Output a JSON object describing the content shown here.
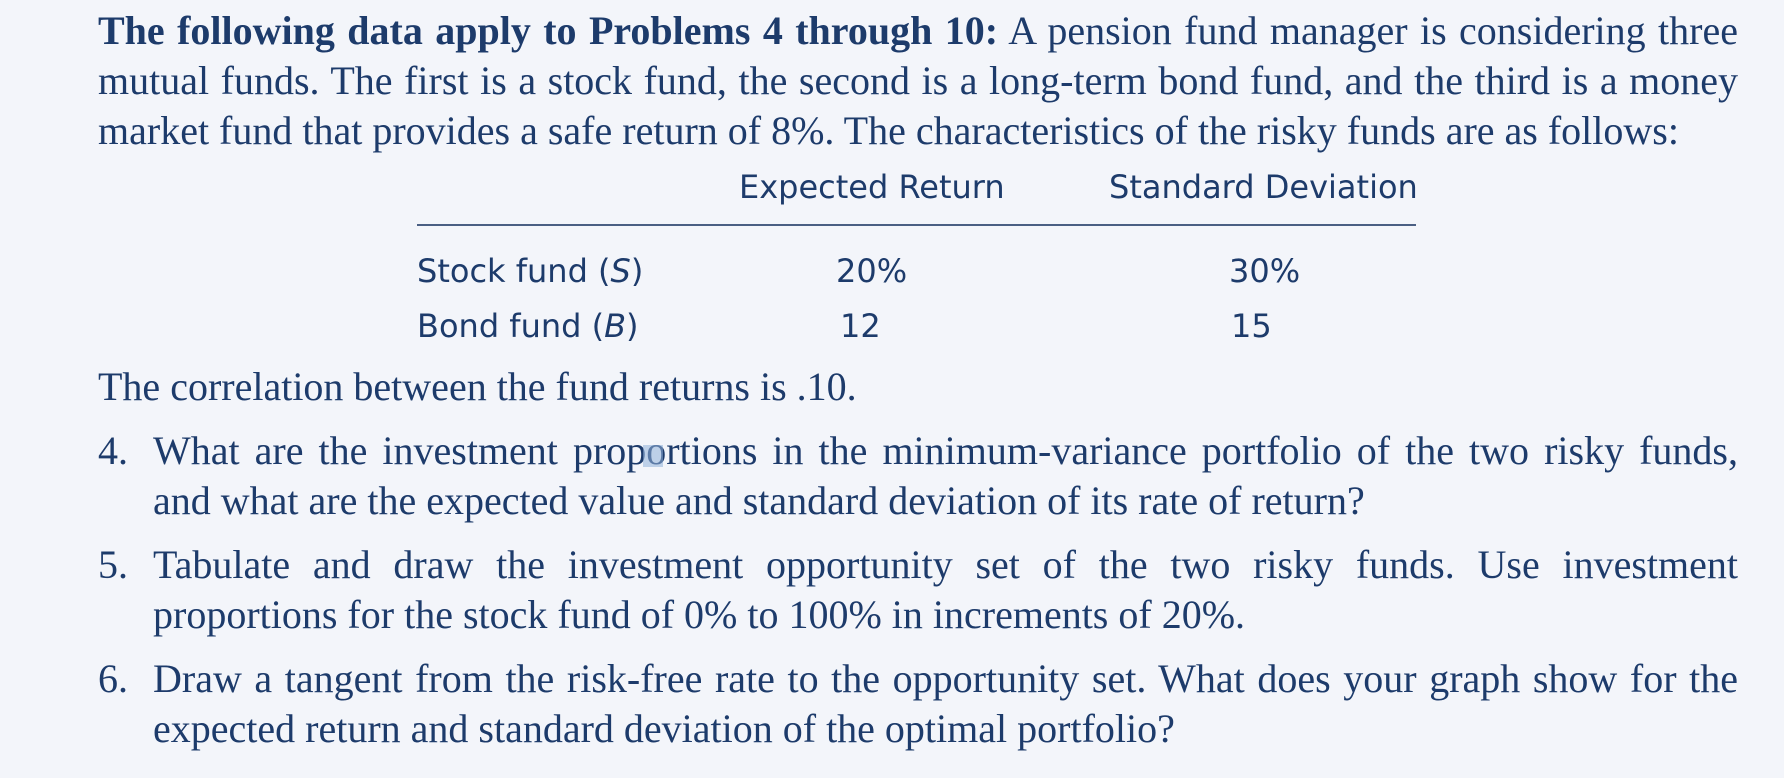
{
  "intro": {
    "lead": "The following data apply to Problems 4 through 10:",
    "text": " A pension fund manager is considering three mutual funds. The first is a stock fund, the second is a long-term bond fund, and the third is a money market fund that provides a safe return of 8%. The characteristics of the risky funds are as follows:"
  },
  "table": {
    "headers": [
      "Expected Return",
      "Standard Deviation"
    ],
    "rows": [
      {
        "name": "Stock fund (",
        "symbol": "S",
        "close": ")",
        "expected_return": "20%",
        "std_dev": "30%"
      },
      {
        "name": "Bond fund (",
        "symbol": "B",
        "close": ")",
        "expected_return": "12",
        "std_dev": "15"
      }
    ]
  },
  "correlation": "The correlation between the fund returns is .10.",
  "questions": [
    {
      "num": "4.",
      "text": "What are the investment proportions in the minimum-variance portfolio of the two risky funds, and what are the expected value and standard deviation of its rate of return?"
    },
    {
      "num": "5.",
      "text": "Tabulate and draw the investment opportunity set of the two risky funds. Use investment proportions for the stock fund of 0% to 100% in increments of 20%."
    },
    {
      "num": "6.",
      "text": "Draw a tangent from the risk-free rate to the opportunity set. What does your graph show for the expected return and standard deviation of the optimal portfolio?"
    }
  ]
}
